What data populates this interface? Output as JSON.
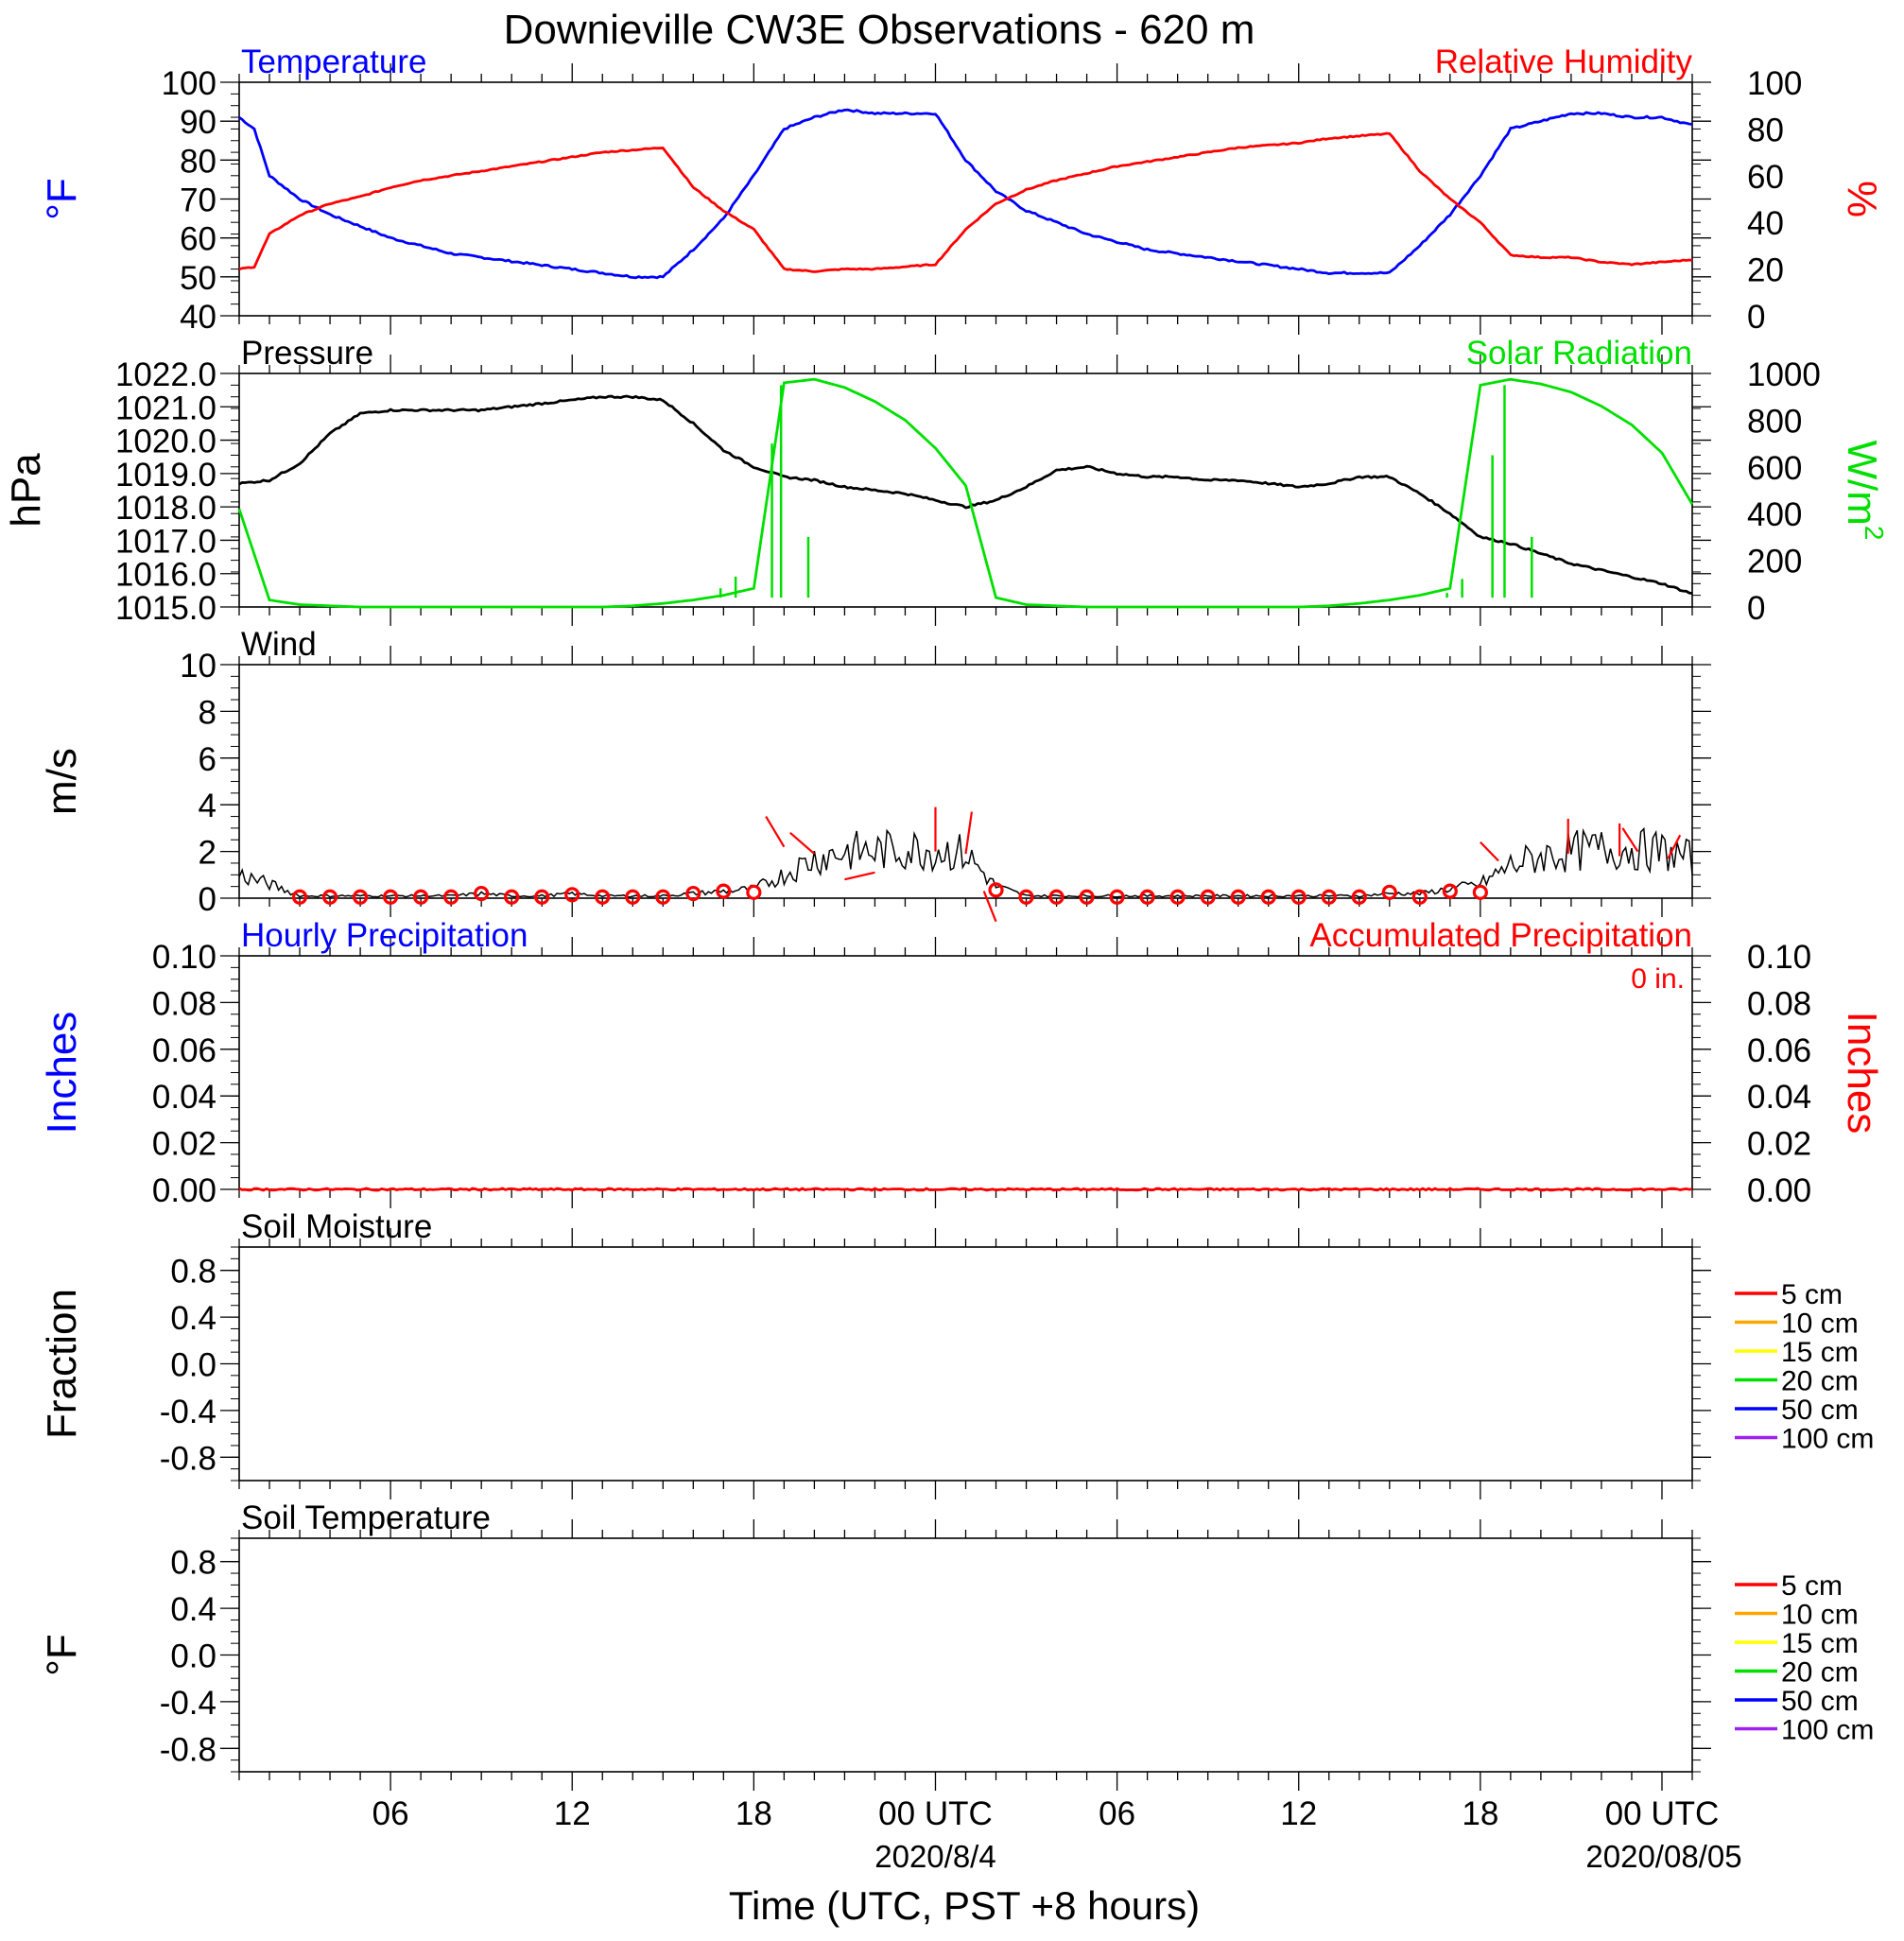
{
  "title": "Downieville CW3E Observations - 620 m",
  "xlabel": "Time (UTC, PST +8 hours)",
  "x_ticks": [
    "06",
    "12",
    "18",
    "00 UTC",
    "06",
    "12",
    "18",
    "00 UTC"
  ],
  "x_dates": [
    "2020/8/4",
    "2020/08/05"
  ],
  "x_range_hours": [
    1,
    49
  ],
  "colors": {
    "blue": "#0000ff",
    "red": "#ff0000",
    "green": "#00e000",
    "black": "#000000"
  },
  "chart_data": [
    {
      "type": "line",
      "panel": "temperature-humidity",
      "left_title": "Temperature",
      "right_title": "Relative Humidity",
      "ylabel_left": "°F",
      "ylabel_right": "%",
      "ylim_left": [
        40,
        100
      ],
      "ylim_right": [
        0,
        100
      ],
      "yticks_left": [
        "100",
        "90",
        "80",
        "70",
        "60",
        "50",
        "40"
      ],
      "yticks_right": [
        "100",
        "80",
        "60",
        "40",
        "20",
        "0"
      ],
      "x": [
        1,
        1.5,
        2,
        3,
        4,
        5,
        6,
        7,
        8,
        9,
        10,
        11,
        12,
        13,
        14,
        15,
        16,
        17,
        18,
        19,
        20,
        21,
        22,
        23,
        24,
        25,
        26,
        27,
        28,
        29,
        30,
        31,
        32,
        33,
        34,
        35,
        36,
        37,
        38,
        39,
        40,
        41,
        42,
        43,
        44,
        45,
        46,
        47,
        48,
        49
      ],
      "series": [
        {
          "name": "Temperature",
          "axis": "left",
          "color": "#0000ff",
          "values": [
            91,
            88,
            76,
            70,
            66,
            63,
            60,
            58,
            56,
            55,
            54,
            53,
            52,
            51,
            50,
            50,
            57,
            65,
            76,
            88,
            91,
            93,
            92,
            92,
            92,
            80,
            72,
            67,
            64,
            61,
            59,
            57,
            56,
            55,
            54,
            53,
            52,
            51,
            51,
            51,
            58,
            66,
            76,
            88,
            90,
            92,
            92,
            91,
            91,
            89
          ]
        },
        {
          "name": "Relative Humidity",
          "axis": "right",
          "color": "#ff0000",
          "values": [
            20,
            21,
            35,
            43,
            48,
            51,
            55,
            58,
            60,
            62,
            64,
            66,
            68,
            70,
            71,
            72,
            55,
            45,
            37,
            20,
            19,
            20,
            20,
            21,
            22,
            37,
            48,
            54,
            58,
            61,
            64,
            66,
            68,
            70,
            72,
            73,
            74,
            76,
            77,
            78,
            62,
            50,
            40,
            26,
            25,
            25,
            23,
            22,
            23,
            24
          ]
        }
      ]
    },
    {
      "type": "line",
      "panel": "pressure-solar",
      "left_title": "Pressure",
      "right_title": "Solar Radiation",
      "ylabel_left": "hPa",
      "ylabel_right": "W/m",
      "ylabel_right_sup": "2",
      "ylim_left": [
        1015,
        1022
      ],
      "ylim_right": [
        0,
        1000
      ],
      "yticks_left": [
        "1022.0",
        "1021.0",
        "1020.0",
        "1019.0",
        "1018.0",
        "1017.0",
        "1016.0",
        "1015.0"
      ],
      "yticks_right": [
        "1000",
        "800",
        "600",
        "400",
        "200",
        "0"
      ],
      "x": [
        1,
        2,
        3,
        4,
        5,
        6,
        7,
        8,
        9,
        10,
        11,
        12,
        13,
        14,
        15,
        16,
        17,
        18,
        19,
        20,
        21,
        22,
        23,
        24,
        25,
        26,
        27,
        28,
        29,
        30,
        31,
        32,
        33,
        34,
        35,
        36,
        37,
        38,
        39,
        40,
        41,
        42,
        43,
        44,
        45,
        46,
        47,
        48,
        49
      ],
      "series": [
        {
          "name": "Pressure",
          "axis": "left",
          "color": "#000000",
          "values": [
            1018.7,
            1018.8,
            1019.3,
            1020.2,
            1020.8,
            1020.9,
            1020.9,
            1020.9,
            1020.9,
            1021.0,
            1021.1,
            1021.2,
            1021.3,
            1021.3,
            1021.2,
            1020.5,
            1019.7,
            1019.2,
            1018.9,
            1018.8,
            1018.6,
            1018.5,
            1018.4,
            1018.2,
            1018.0,
            1018.2,
            1018.6,
            1019.1,
            1019.2,
            1019.0,
            1018.9,
            1018.9,
            1018.8,
            1018.8,
            1018.7,
            1018.6,
            1018.7,
            1018.9,
            1018.9,
            1018.4,
            1017.8,
            1017.1,
            1016.9,
            1016.6,
            1016.3,
            1016.1,
            1015.9,
            1015.7,
            1015.4
          ]
        },
        {
          "name": "Solar Radiation",
          "axis": "right",
          "color": "#00e000",
          "values": [
            420,
            30,
            10,
            5,
            0,
            0,
            0,
            0,
            0,
            0,
            0,
            0,
            0,
            5,
            15,
            30,
            50,
            80,
            960,
            975,
            940,
            880,
            800,
            680,
            520,
            40,
            10,
            5,
            0,
            0,
            0,
            0,
            0,
            0,
            0,
            0,
            5,
            15,
            30,
            50,
            80,
            950,
            975,
            955,
            920,
            860,
            780,
            660,
            440
          ]
        }
      ]
    },
    {
      "type": "line",
      "panel": "wind",
      "left_title": "Wind",
      "ylabel_left": "m/s",
      "ylim_left": [
        0,
        10
      ],
      "yticks_left": [
        "10",
        "8",
        "6",
        "4",
        "2",
        "0"
      ],
      "x": [
        1,
        2,
        3,
        4,
        5,
        6,
        7,
        8,
        9,
        10,
        11,
        12,
        13,
        14,
        15,
        16,
        17,
        18,
        19,
        20,
        21,
        22,
        23,
        24,
        25,
        26,
        27,
        28,
        29,
        30,
        31,
        32,
        33,
        34,
        35,
        36,
        37,
        38,
        39,
        40,
        41,
        42,
        43,
        44,
        45,
        46,
        47,
        48,
        49
      ],
      "series": [
        {
          "name": "Wind Speed",
          "axis": "left",
          "color": "#000000",
          "values": [
            1.0,
            0.6,
            0.1,
            0.1,
            0.1,
            0.1,
            0.1,
            0.1,
            0.2,
            0.1,
            0.1,
            0.2,
            0.1,
            0.1,
            0.1,
            0.2,
            0.3,
            0.4,
            1.0,
            1.7,
            2.0,
            2.0,
            2.1,
            2.1,
            1.9,
            0.5,
            0.1,
            0.1,
            0.1,
            0.1,
            0.1,
            0.1,
            0.1,
            0.1,
            0.1,
            0.1,
            0.1,
            0.1,
            0.2,
            0.2,
            0.4,
            0.6,
            1.4,
            1.8,
            2.0,
            2.1,
            2.1,
            2.0,
            1.7
          ]
        }
      ],
      "barb_markers": {
        "color": "#ff0000",
        "x": [
          3,
          4,
          5,
          6,
          7,
          8,
          9,
          10,
          11,
          12,
          13,
          14,
          15,
          16,
          17,
          18,
          26,
          27,
          28,
          29,
          30,
          31,
          32,
          33,
          34,
          35,
          36,
          37,
          38,
          39,
          40,
          41,
          42
        ],
        "values": [
          0.05,
          0.05,
          0.05,
          0.05,
          0.05,
          0.05,
          0.2,
          0.05,
          0.05,
          0.15,
          0.05,
          0.05,
          0.05,
          0.2,
          0.3,
          0.25,
          0.35,
          0.05,
          0.05,
          0.05,
          0.05,
          0.05,
          0.05,
          0.05,
          0.05,
          0.05,
          0.05,
          0.05,
          0.05,
          0.25,
          0.05,
          0.3,
          0.25
        ]
      },
      "barb_lines": [
        {
          "x": 19,
          "y": 2.2,
          "dx": -0.6,
          "dy": 1.3
        },
        {
          "x": 20,
          "y": 1.9,
          "dx": -0.8,
          "dy": 0.9
        },
        {
          "x": 21,
          "y": 0.8,
          "dx": 1.0,
          "dy": 0.3
        },
        {
          "x": 24,
          "y": 2.0,
          "dx": 0.0,
          "dy": 1.9
        },
        {
          "x": 25,
          "y": 1.9,
          "dx": 0.2,
          "dy": 1.8
        },
        {
          "x": 25.6,
          "y": 0.3,
          "dx": 0.4,
          "dy": -1.3
        },
        {
          "x": 42.6,
          "y": 1.6,
          "dx": -0.6,
          "dy": 0.8
        },
        {
          "x": 44.9,
          "y": 1.9,
          "dx": 0.0,
          "dy": 1.5
        },
        {
          "x": 46.6,
          "y": 1.8,
          "dx": 0.0,
          "dy": 1.4
        },
        {
          "x": 47.2,
          "y": 2.0,
          "dx": -0.5,
          "dy": 1.0
        },
        {
          "x": 48.2,
          "y": 1.7,
          "dx": 0.4,
          "dy": 1.0
        }
      ]
    },
    {
      "type": "line",
      "panel": "precipitation",
      "left_title": "Hourly Precipitation",
      "right_title": "Accumulated Precipitation",
      "accum_text": "0 in.",
      "ylabel_left": "Inches",
      "ylabel_right": "Inches",
      "ylim_left": [
        0,
        0.1
      ],
      "ylim_right": [
        0,
        0.1
      ],
      "yticks_left": [
        "0.10",
        "0.08",
        "0.06",
        "0.04",
        "0.02",
        "0.00"
      ],
      "yticks_right": [
        "0.10",
        "0.08",
        "0.06",
        "0.04",
        "0.02",
        "0.00"
      ],
      "x": [
        1,
        49
      ],
      "series": [
        {
          "name": "Accumulated Precipitation",
          "axis": "right",
          "color": "#ff0000",
          "values": [
            0,
            0
          ]
        }
      ]
    },
    {
      "type": "line",
      "panel": "soil-moisture",
      "left_title": "Soil Moisture",
      "ylabel_left": "Fraction",
      "ylim_left": [
        -1,
        1
      ],
      "yticks_left": [
        "0.8",
        "0.4",
        "0.0",
        "-0.4",
        "-0.8"
      ],
      "legend": [
        {
          "label": "5 cm",
          "color": "#ff0000"
        },
        {
          "label": "10 cm",
          "color": "#ffa500"
        },
        {
          "label": "15 cm",
          "color": "#ffff00"
        },
        {
          "label": "20 cm",
          "color": "#00e000"
        },
        {
          "label": "50 cm",
          "color": "#0000ff"
        },
        {
          "label": "100 cm",
          "color": "#a020f0"
        }
      ],
      "series": []
    },
    {
      "type": "line",
      "panel": "soil-temperature",
      "left_title": "Soil Temperature",
      "ylabel_left": "°F",
      "ylim_left": [
        -1,
        1
      ],
      "yticks_left": [
        "0.8",
        "0.4",
        "0.0",
        "-0.4",
        "-0.8"
      ],
      "legend": [
        {
          "label": "5 cm",
          "color": "#ff0000"
        },
        {
          "label": "10 cm",
          "color": "#ffa500"
        },
        {
          "label": "15 cm",
          "color": "#ffff00"
        },
        {
          "label": "20 cm",
          "color": "#00e000"
        },
        {
          "label": "50 cm",
          "color": "#0000ff"
        },
        {
          "label": "100 cm",
          "color": "#a020f0"
        }
      ],
      "series": []
    }
  ]
}
